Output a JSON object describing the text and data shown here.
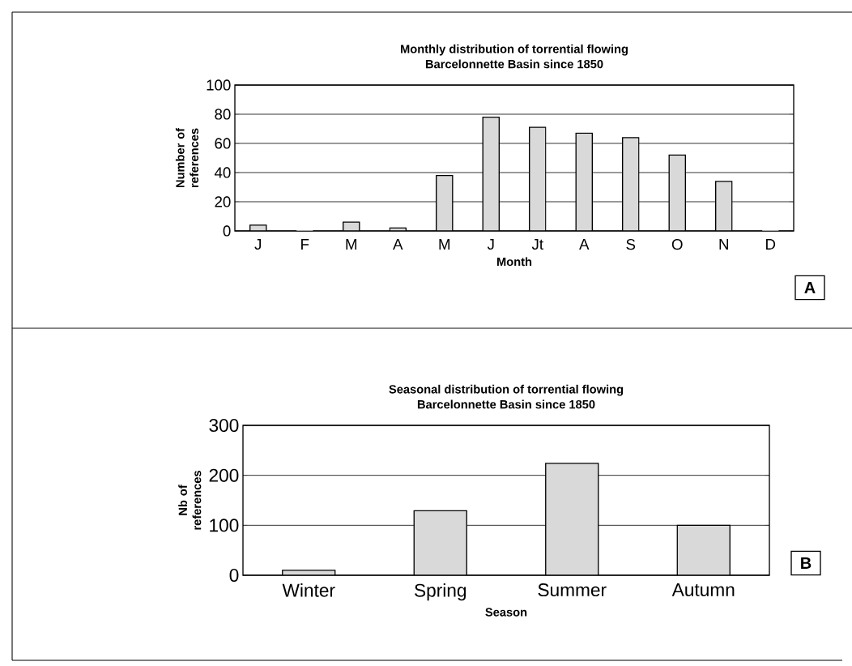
{
  "chart_data": [
    {
      "type": "bar",
      "title": "Monthly distribution of torrential flowing",
      "subtitle": "Barcelonnette Basin since 1850",
      "xlabel": "Month",
      "ylabel": "Number of references",
      "categories": [
        "J",
        "F",
        "M",
        "A",
        "M",
        "J",
        "Jt",
        "A",
        "S",
        "O",
        "N",
        "D"
      ],
      "values": [
        4,
        0,
        6,
        2,
        38,
        78,
        71,
        67,
        64,
        52,
        34,
        0
      ],
      "color": "#d9d9d9",
      "ylim": [
        0,
        100
      ],
      "yticks": [
        0,
        20,
        40,
        60,
        80,
        100
      ],
      "grid": "y",
      "annotations": [
        "A"
      ]
    },
    {
      "type": "bar",
      "title": "Seasonal distribution of torrential flowing",
      "subtitle": "Barcelonnette Basin since 1850",
      "xlabel": "Season",
      "ylabel": "Nb of references",
      "categories": [
        "Winter",
        "Spring",
        "Summer",
        "Autumn"
      ],
      "values": [
        10,
        129,
        224,
        100
      ],
      "color": "#d9d9d9",
      "ylim": [
        0,
        300
      ],
      "yticks": [
        0,
        100,
        200,
        300
      ],
      "grid": "y",
      "annotations": [
        "B"
      ]
    }
  ]
}
